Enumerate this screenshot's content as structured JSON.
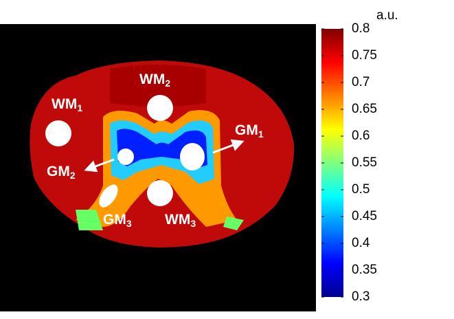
{
  "colorbar": {
    "unit": "a.u.",
    "ticks": [
      "0.8",
      "0.75",
      "0.7",
      "0.65",
      "0.6",
      "0.55",
      "0.5",
      "0.45",
      "0.4",
      "0.35",
      "0.3"
    ],
    "range": [
      0.3,
      0.8
    ],
    "colormap": "jet"
  },
  "labels": {
    "wm1": {
      "main": "WM",
      "sub": "1"
    },
    "wm2": {
      "main": "WM",
      "sub": "2"
    },
    "wm3": {
      "main": "WM",
      "sub": "3"
    },
    "gm1": {
      "main": "GM",
      "sub": "1"
    },
    "gm2": {
      "main": "GM",
      "sub": "2"
    },
    "gm3": {
      "main": "GM",
      "sub": "3"
    }
  }
}
